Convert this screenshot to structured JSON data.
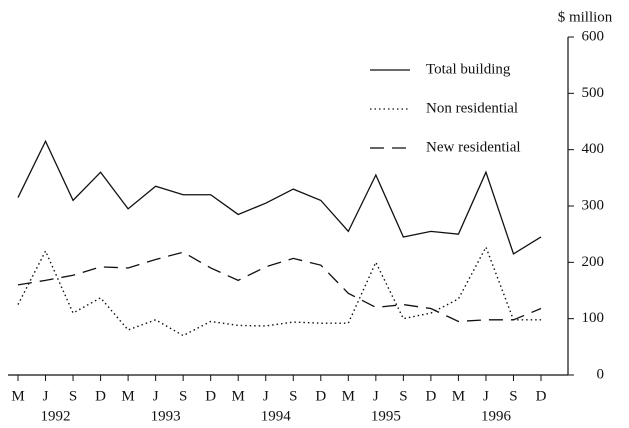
{
  "chart_data": {
    "type": "line",
    "y_axis_label": "$ million",
    "categories": [
      "M",
      "J",
      "S",
      "D",
      "M",
      "J",
      "S",
      "D",
      "M",
      "J",
      "S",
      "D",
      "M",
      "J",
      "S",
      "D",
      "M",
      "J",
      "S",
      "D"
    ],
    "years": [
      "1992",
      "1993",
      "1994",
      "1995",
      "1996"
    ],
    "ylim": [
      0,
      600
    ],
    "yticks": [
      0,
      100,
      200,
      300,
      400,
      500,
      600
    ],
    "legend": "top-right",
    "series": [
      {
        "name": "Total building",
        "color": "#111111",
        "dash": "solid",
        "values": [
          315,
          415,
          310,
          360,
          295,
          335,
          320,
          320,
          285,
          305,
          330,
          310,
          255,
          355,
          245,
          255,
          250,
          360,
          215,
          245
        ]
      },
      {
        "name": "Non residential",
        "color": "#111111",
        "dash": "dotted",
        "values": [
          125,
          220,
          110,
          137,
          80,
          98,
          70,
          95,
          88,
          87,
          94,
          92,
          92,
          200,
          100,
          110,
          135,
          227,
          98,
          98
        ]
      },
      {
        "name": "New residential",
        "color": "#111111",
        "dash": "dashed",
        "values": [
          160,
          168,
          177,
          192,
          190,
          205,
          218,
          190,
          168,
          192,
          207,
          195,
          145,
          120,
          125,
          118,
          95,
          98,
          98,
          118
        ]
      }
    ]
  }
}
